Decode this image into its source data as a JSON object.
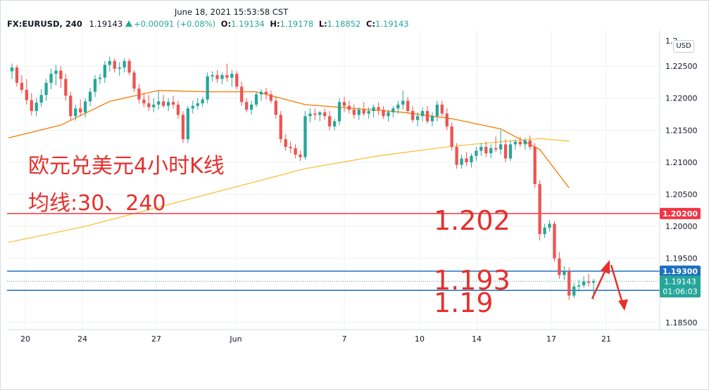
{
  "header": {
    "timestamp": "June 18, 2021 15:53:58 CST",
    "symbol": "FX:EURUSD, 240",
    "last": "1.19143",
    "change": "+0.00091 (+0.08%)",
    "open_label": "O:",
    "open": "1.19134",
    "high_label": "H:",
    "high": "1.19178",
    "low_label": "L:",
    "low": "1.18852",
    "close_label": "C:",
    "close": "1.19143",
    "currency": "USD"
  },
  "colors": {
    "up": "#26a69a",
    "down": "#ef5350",
    "ma30": "#f57c00",
    "ma240": "#f9c23c",
    "red_line": "#f23645",
    "blue_line": "#1e6fc4",
    "annotation": "#e5302c",
    "grid": "#eef0f3"
  },
  "annotations": {
    "title": "欧元兑美元4小时K线",
    "subtitle": "均线:30、240",
    "levels": [
      "1.202",
      "1.193",
      "1.19"
    ]
  },
  "chart_data": {
    "type": "candlestick",
    "x_ticks": [
      "20",
      "24",
      "27",
      "Jun",
      "7",
      "10",
      "14",
      "17",
      "21"
    ],
    "y_ticks": [
      "1.22500",
      "1.22000",
      "1.21500",
      "1.21000",
      "1.20500",
      "1.20000",
      "1.19500",
      "1.18500"
    ],
    "ylim": [
      1.184,
      1.2305
    ],
    "horizontal_lines": [
      {
        "value": 1.202,
        "label": "1.20200",
        "color": "red"
      },
      {
        "value": 1.193,
        "label": "1.19300",
        "color": "blue"
      },
      {
        "value": 1.19,
        "label": "1.19000",
        "color": "blue"
      }
    ],
    "last_price": {
      "value": 1.19143,
      "label": "1.19143",
      "countdown": "01:06:03"
    },
    "series": [
      {
        "type": "candles",
        "ohlc": [
          [
            1.2242,
            1.2254,
            1.223,
            1.2248
          ],
          [
            1.2248,
            1.2252,
            1.2218,
            1.2224
          ],
          [
            1.2224,
            1.2236,
            1.2208,
            1.2213
          ],
          [
            1.2213,
            1.223,
            1.219,
            1.2197
          ],
          [
            1.2197,
            1.2208,
            1.2173,
            1.218
          ],
          [
            1.218,
            1.22,
            1.2172,
            1.2193
          ],
          [
            1.2193,
            1.2214,
            1.2186,
            1.2205
          ],
          [
            1.2205,
            1.223,
            1.2196,
            1.2224
          ],
          [
            1.2224,
            1.2246,
            1.2214,
            1.2238
          ],
          [
            1.2238,
            1.2252,
            1.222,
            1.2243
          ],
          [
            1.2243,
            1.225,
            1.2216,
            1.223
          ],
          [
            1.223,
            1.2238,
            1.2196,
            1.2204
          ],
          [
            1.2204,
            1.221,
            1.2165,
            1.2172
          ],
          [
            1.2172,
            1.219,
            1.2165,
            1.2184
          ],
          [
            1.2184,
            1.2198,
            1.2172,
            1.2178
          ],
          [
            1.2178,
            1.22,
            1.217,
            1.2195
          ],
          [
            1.2195,
            1.2216,
            1.2188,
            1.221
          ],
          [
            1.221,
            1.2236,
            1.2202,
            1.223
          ],
          [
            1.223,
            1.2238,
            1.2222,
            1.2232
          ],
          [
            1.2232,
            1.2258,
            1.2224,
            1.2252
          ],
          [
            1.2252,
            1.2265,
            1.2242,
            1.2258
          ],
          [
            1.2258,
            1.2262,
            1.224,
            1.2246
          ],
          [
            1.2246,
            1.2256,
            1.2235,
            1.2248
          ],
          [
            1.2248,
            1.2262,
            1.224,
            1.2258
          ],
          [
            1.2258,
            1.2262,
            1.2236,
            1.224
          ],
          [
            1.224,
            1.2244,
            1.221,
            1.2215
          ],
          [
            1.2215,
            1.2222,
            1.2192,
            1.2198
          ],
          [
            1.2198,
            1.2208,
            1.2186,
            1.2192
          ],
          [
            1.2192,
            1.2205,
            1.218,
            1.2186
          ],
          [
            1.2186,
            1.22,
            1.2178,
            1.219
          ],
          [
            1.219,
            1.2212,
            1.2182,
            1.2195
          ],
          [
            1.2195,
            1.2205,
            1.2185,
            1.2188
          ],
          [
            1.2188,
            1.22,
            1.218,
            1.2194
          ],
          [
            1.2194,
            1.2204,
            1.2184,
            1.219
          ],
          [
            1.219,
            1.2196,
            1.2168,
            1.2174
          ],
          [
            1.2174,
            1.218,
            1.213,
            1.2136
          ],
          [
            1.2136,
            1.2188,
            1.213,
            1.2184
          ],
          [
            1.2184,
            1.2196,
            1.2176,
            1.2188
          ],
          [
            1.2188,
            1.22,
            1.2182,
            1.2192
          ],
          [
            1.2192,
            1.2202,
            1.2186,
            1.2198
          ],
          [
            1.2198,
            1.224,
            1.2192,
            1.2234
          ],
          [
            1.2234,
            1.2242,
            1.2226,
            1.2236
          ],
          [
            1.2236,
            1.2244,
            1.2224,
            1.223
          ],
          [
            1.223,
            1.224,
            1.2222,
            1.2236
          ],
          [
            1.2236,
            1.2254,
            1.2226,
            1.2232
          ],
          [
            1.2232,
            1.2244,
            1.2218,
            1.2238
          ],
          [
            1.2238,
            1.2242,
            1.2214,
            1.2218
          ],
          [
            1.2218,
            1.2226,
            1.2188,
            1.2194
          ],
          [
            1.2194,
            1.22,
            1.2178,
            1.2182
          ],
          [
            1.2182,
            1.2196,
            1.2174,
            1.219
          ],
          [
            1.219,
            1.221,
            1.2186,
            1.2206
          ],
          [
            1.2206,
            1.2214,
            1.2196,
            1.221
          ],
          [
            1.221,
            1.2216,
            1.2198,
            1.2206
          ],
          [
            1.2206,
            1.2212,
            1.2192,
            1.2196
          ],
          [
            1.2196,
            1.2202,
            1.2168,
            1.2174
          ],
          [
            1.2174,
            1.218,
            1.213,
            1.2136
          ],
          [
            1.2136,
            1.2144,
            1.2118,
            1.2124
          ],
          [
            1.2124,
            1.2132,
            1.2114,
            1.2122
          ],
          [
            1.2122,
            1.2128,
            1.2106,
            1.2112
          ],
          [
            1.2112,
            1.2118,
            1.2102,
            1.2108
          ],
          [
            1.2108,
            1.218,
            1.2104,
            1.2172
          ],
          [
            1.2172,
            1.2184,
            1.2162,
            1.2176
          ],
          [
            1.2176,
            1.2184,
            1.2166,
            1.2174
          ],
          [
            1.2174,
            1.218,
            1.2164,
            1.2178
          ],
          [
            1.2178,
            1.2184,
            1.2166,
            1.2172
          ],
          [
            1.2172,
            1.218,
            1.215,
            1.2156
          ],
          [
            1.2156,
            1.2168,
            1.215,
            1.2164
          ],
          [
            1.2164,
            1.22,
            1.2158,
            1.2194
          ],
          [
            1.2194,
            1.2202,
            1.2178,
            1.2188
          ],
          [
            1.2188,
            1.2196,
            1.2176,
            1.2182
          ],
          [
            1.2182,
            1.219,
            1.2168,
            1.2174
          ],
          [
            1.2174,
            1.2186,
            1.2166,
            1.2182
          ],
          [
            1.2182,
            1.2194,
            1.2172,
            1.2176
          ],
          [
            1.2176,
            1.2186,
            1.2168,
            1.218
          ],
          [
            1.218,
            1.219,
            1.217,
            1.2186
          ],
          [
            1.2186,
            1.2194,
            1.2174,
            1.2182
          ],
          [
            1.2182,
            1.2188,
            1.2168,
            1.2172
          ],
          [
            1.2172,
            1.2182,
            1.2164,
            1.2178
          ],
          [
            1.2178,
            1.2188,
            1.217,
            1.2184
          ],
          [
            1.2184,
            1.2196,
            1.2176,
            1.219
          ],
          [
            1.219,
            1.2212,
            1.2182,
            1.2196
          ],
          [
            1.2196,
            1.2202,
            1.2176,
            1.218
          ],
          [
            1.218,
            1.2188,
            1.2162,
            1.2166
          ],
          [
            1.2166,
            1.2178,
            1.2156,
            1.2172
          ],
          [
            1.2172,
            1.2186,
            1.2164,
            1.218
          ],
          [
            1.218,
            1.2188,
            1.216,
            1.2164
          ],
          [
            1.2164,
            1.2178,
            1.2156,
            1.2172
          ],
          [
            1.2172,
            1.2196,
            1.2164,
            1.219
          ],
          [
            1.219,
            1.2196,
            1.2172,
            1.2176
          ],
          [
            1.2176,
            1.2184,
            1.215,
            1.2156
          ],
          [
            1.2156,
            1.2162,
            1.2118,
            1.2124
          ],
          [
            1.2124,
            1.213,
            1.209,
            1.2096
          ],
          [
            1.2096,
            1.2112,
            1.209,
            1.2106
          ],
          [
            1.2106,
            1.2116,
            1.2094,
            1.21
          ],
          [
            1.21,
            1.2114,
            1.2092,
            1.211
          ],
          [
            1.211,
            1.2124,
            1.2102,
            1.2118
          ],
          [
            1.2118,
            1.213,
            1.211,
            1.2124
          ],
          [
            1.2124,
            1.2132,
            1.2108,
            1.2114
          ],
          [
            1.2114,
            1.2128,
            1.2106,
            1.2122
          ],
          [
            1.2122,
            1.214,
            1.2116,
            1.212
          ],
          [
            1.212,
            1.215,
            1.2112,
            1.2128
          ],
          [
            1.2128,
            1.2136,
            1.21,
            1.2106
          ],
          [
            1.2106,
            1.2134,
            1.2102,
            1.2128
          ],
          [
            1.2128,
            1.2136,
            1.212,
            1.2132
          ],
          [
            1.2132,
            1.214,
            1.2124,
            1.2128
          ],
          [
            1.2128,
            1.2138,
            1.212,
            1.2134
          ],
          [
            1.2134,
            1.2142,
            1.212,
            1.2124
          ],
          [
            1.2124,
            1.213,
            1.206,
            1.2066
          ],
          [
            1.2066,
            1.2072,
            1.1978,
            1.1988
          ],
          [
            1.1988,
            1.2004,
            1.1982,
            1.1998
          ],
          [
            1.1998,
            1.201,
            1.1992,
            1.2004
          ],
          [
            1.2004,
            1.2008,
            1.1945,
            1.195
          ],
          [
            1.195,
            1.196,
            1.1918,
            1.1924
          ],
          [
            1.1924,
            1.1938,
            1.1916,
            1.193
          ],
          [
            1.193,
            1.1936,
            1.1885,
            1.1892
          ],
          [
            1.1892,
            1.1912,
            1.1888,
            1.1906
          ],
          [
            1.1906,
            1.1916,
            1.1898,
            1.1908
          ],
          [
            1.1908,
            1.1922,
            1.1904,
            1.1914
          ],
          [
            1.1914,
            1.1926,
            1.1906,
            1.1912
          ],
          [
            1.1912,
            1.1918,
            1.1885,
            1.19143
          ]
        ]
      },
      {
        "type": "ma",
        "period": 30,
        "color": "orange",
        "points": [
          [
            0,
            1.2138
          ],
          [
            10,
            1.2158
          ],
          [
            20,
            1.2195
          ],
          [
            30,
            1.2212
          ],
          [
            40,
            1.221
          ],
          [
            50,
            1.221
          ],
          [
            60,
            1.219
          ],
          [
            70,
            1.2184
          ],
          [
            80,
            1.2178
          ],
          [
            90,
            1.2168
          ],
          [
            100,
            1.2152
          ],
          [
            108,
            1.212
          ],
          [
            114,
            1.206
          ]
        ]
      },
      {
        "type": "ma",
        "period": 240,
        "color": "yellow",
        "points": [
          [
            0,
            1.1975
          ],
          [
            15,
            1.2
          ],
          [
            30,
            1.203
          ],
          [
            45,
            1.206
          ],
          [
            60,
            1.209
          ],
          [
            75,
            1.211
          ],
          [
            90,
            1.2125
          ],
          [
            100,
            1.2132
          ],
          [
            108,
            1.2137
          ],
          [
            114,
            1.2133
          ]
        ]
      }
    ]
  }
}
